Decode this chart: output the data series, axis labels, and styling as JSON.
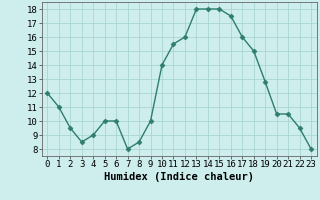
{
  "x": [
    0,
    1,
    2,
    3,
    4,
    5,
    6,
    7,
    8,
    9,
    10,
    11,
    12,
    13,
    14,
    15,
    16,
    17,
    18,
    19,
    20,
    21,
    22,
    23
  ],
  "y": [
    12,
    11,
    9.5,
    8.5,
    9,
    10,
    10,
    8,
    8.5,
    10,
    14,
    15.5,
    16,
    18,
    18,
    18,
    17.5,
    16,
    15,
    12.8,
    10.5,
    10.5,
    9.5,
    8
  ],
  "line_color": "#2e7d6e",
  "marker": "D",
  "marker_size": 2.5,
  "line_width": 1.0,
  "xlabel": "Humidex (Indice chaleur)",
  "xlabel_fontsize": 7.5,
  "xlim": [
    -0.5,
    23.5
  ],
  "ylim": [
    7.5,
    18.5
  ],
  "yticks": [
    8,
    9,
    10,
    11,
    12,
    13,
    14,
    15,
    16,
    17,
    18
  ],
  "xticks": [
    0,
    1,
    2,
    3,
    4,
    5,
    6,
    7,
    8,
    9,
    10,
    11,
    12,
    13,
    14,
    15,
    16,
    17,
    18,
    19,
    20,
    21,
    22,
    23
  ],
  "bg_color": "#cdeeed",
  "grid_color": "#a8d5d3",
  "tick_fontsize": 6.5,
  "title": ""
}
